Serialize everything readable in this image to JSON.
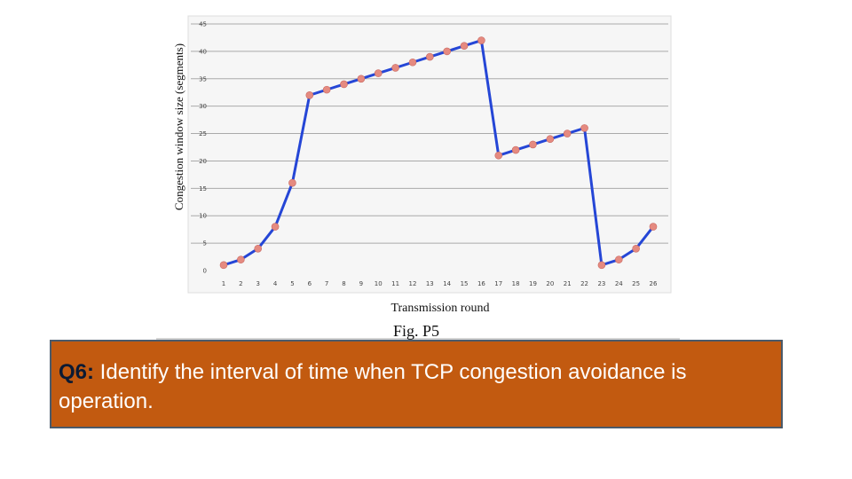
{
  "chart_data": {
    "type": "line",
    "x": [
      1,
      2,
      3,
      4,
      5,
      6,
      7,
      8,
      9,
      10,
      11,
      12,
      13,
      14,
      15,
      16,
      17,
      18,
      19,
      20,
      21,
      22,
      23,
      24,
      25,
      26
    ],
    "values": [
      1,
      2,
      4,
      8,
      16,
      32,
      33,
      34,
      35,
      36,
      37,
      38,
      39,
      40,
      41,
      42,
      21,
      22,
      23,
      24,
      25,
      26,
      1,
      2,
      4,
      8
    ],
    "xlabel": "Transmission round",
    "ylabel": "Congestion window size (segments)",
    "ylim": [
      0,
      45
    ],
    "yticks": [
      0,
      5,
      10,
      15,
      20,
      25,
      30,
      35,
      40,
      45
    ],
    "grid": true,
    "caption": "Fig. P5",
    "colors": {
      "line": "#2546d6",
      "marker": "#e58a80",
      "grid": "#aaaaaa"
    }
  },
  "question": {
    "label": "Q6:",
    "text": " Identify the interval of time when TCP congestion avoidance is operation.",
    "background": "#c25a10"
  }
}
